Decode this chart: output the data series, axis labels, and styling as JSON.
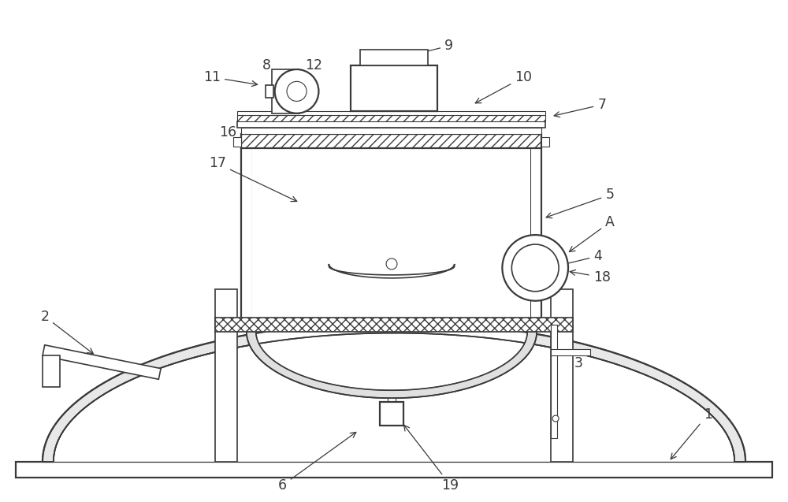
{
  "bg_color": "#ffffff",
  "line_color": "#3a3a3a",
  "fig_width": 10.0,
  "fig_height": 6.37,
  "dpi": 100
}
